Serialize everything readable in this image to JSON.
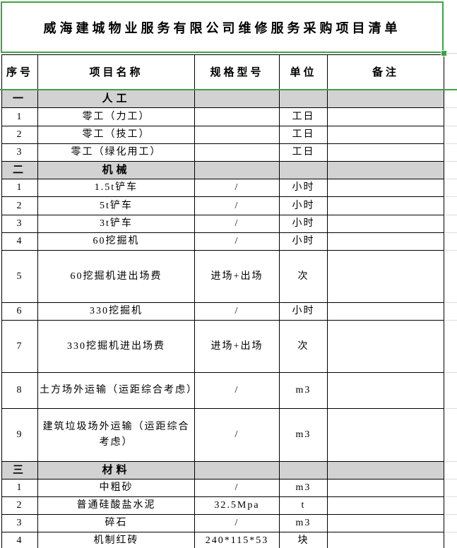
{
  "title": "威海建城物业服务有限公司维修服务采购项目清单",
  "columns": {
    "no": "序号",
    "name": "项目名称",
    "spec": "规格型号",
    "unit": "单位",
    "note": "备注"
  },
  "colors": {
    "selection_green": "#3fa344",
    "section_fill": "#d2d2d2",
    "cell_border": "#000000",
    "faint_gridline": "#dcdcdc",
    "background": "#ffffff"
  },
  "rows": [
    {
      "no": "一",
      "name": "人工",
      "spec": "",
      "unit": "",
      "note": ""
    },
    {
      "no": "1",
      "name": "零工（力工）",
      "spec": "",
      "unit": "工日",
      "note": ""
    },
    {
      "no": "2",
      "name": "零工（技工）",
      "spec": "",
      "unit": "工日",
      "note": ""
    },
    {
      "no": "3",
      "name": "零工（绿化用工）",
      "spec": "",
      "unit": "工日",
      "note": ""
    },
    {
      "no": "二",
      "name": "机械",
      "spec": "",
      "unit": "",
      "note": ""
    },
    {
      "no": "1",
      "name": "1.5t铲车",
      "spec": "/",
      "unit": "小时",
      "note": ""
    },
    {
      "no": "2",
      "name": "5t铲车",
      "spec": "/",
      "unit": "小时",
      "note": ""
    },
    {
      "no": "3",
      "name": "3t铲车",
      "spec": "/",
      "unit": "小时",
      "note": ""
    },
    {
      "no": "4",
      "name": "60挖掘机",
      "spec": "/",
      "unit": "小时",
      "note": ""
    },
    {
      "no": "5",
      "name": "60挖掘机进出场费",
      "spec": "进场+出场",
      "unit": "次",
      "note": ""
    },
    {
      "no": "6",
      "name": "330挖掘机",
      "spec": "/",
      "unit": "小时",
      "note": ""
    },
    {
      "no": "7",
      "name": "330挖掘机进出场费",
      "spec": "进场+出场",
      "unit": "次",
      "note": ""
    },
    {
      "no": "8",
      "name": "土方场外运输（运距综合考虑）",
      "spec": "/",
      "unit": "m3",
      "note": ""
    },
    {
      "no": "9",
      "name": "建筑垃圾场外运输（运距综合考虑）",
      "spec": "/",
      "unit": "m3",
      "note": ""
    },
    {
      "no": "三",
      "name": "材料",
      "spec": "",
      "unit": "",
      "note": ""
    },
    {
      "no": "1",
      "name": "中粗砂",
      "spec": "/",
      "unit": "m3",
      "note": ""
    },
    {
      "no": "2",
      "name": "普通硅酸盐水泥",
      "spec": "32.5Mpa",
      "unit": "t",
      "note": ""
    },
    {
      "no": "3",
      "name": "碎石",
      "spec": "/",
      "unit": "m3",
      "note": ""
    },
    {
      "no": "4",
      "name": "机制红砖",
      "spec": "240*115*53",
      "unit": "块",
      "note": ""
    }
  ]
}
